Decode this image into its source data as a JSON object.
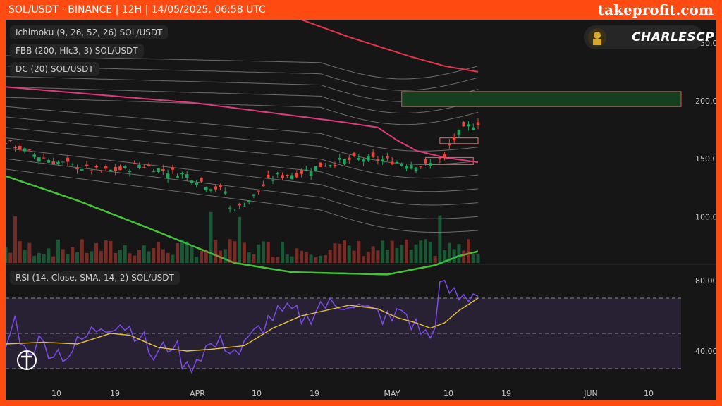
{
  "header": {
    "title": "SOL/USDT · BINANCE | 12H | 14/05/2025, 06:58 UTC",
    "brand": "takeprofit.com"
  },
  "legends": {
    "ichimoku": {
      "name": "Ichimoku",
      "params": "(9, 26, 52, 26)",
      "symbol": "SOL/USDT"
    },
    "fbb": {
      "name": "FBB",
      "params": "(200, Hlc3, 3)",
      "symbol": "SOL/USDT"
    },
    "dc": {
      "name": "DC",
      "params": "(20)",
      "symbol": "SOL/USDT"
    },
    "rsi": {
      "name": "RSI",
      "params": "(14, Close, SMA, 14, 2)",
      "symbol": "SOL/USDT"
    }
  },
  "watermark": {
    "author": "CHARLESCP"
  },
  "colors": {
    "up": "#22a55a",
    "down": "#e8473b",
    "fbb_upper": "#e8334a",
    "fbb_mid": "#e0397c",
    "fbb_lower": "#46c23a",
    "rsi": "#7b4ce8",
    "rsi_ma": "#e8c23a",
    "zone_green": "#14401f",
    "zone_border": "#e05555"
  },
  "chart_data": {
    "type": "candlestick",
    "ylim": [
      60,
      270
    ],
    "y_ticks": [
      "250.00",
      "200.00",
      "150.00",
      "100.00"
    ],
    "x_ticks": [
      "10",
      "19",
      "APR",
      "10",
      "19",
      "MAY",
      "10",
      "19",
      "JUN",
      "10"
    ],
    "price_points": [
      [
        0,
        165
      ],
      [
        5,
        155
      ],
      [
        10,
        148
      ],
      [
        15,
        143
      ],
      [
        20,
        139
      ],
      [
        25,
        141
      ],
      [
        28,
        145
      ],
      [
        33,
        140
      ],
      [
        38,
        136
      ],
      [
        43,
        126
      ],
      [
        46,
        122
      ],
      [
        47,
        107
      ],
      [
        49,
        108
      ],
      [
        52,
        118
      ],
      [
        55,
        131
      ],
      [
        57,
        135
      ],
      [
        61,
        137
      ],
      [
        66,
        144
      ],
      [
        70,
        148
      ],
      [
        75,
        150
      ],
      [
        79,
        149
      ],
      [
        84,
        146
      ],
      [
        88,
        144
      ],
      [
        92,
        150
      ],
      [
        93,
        161
      ],
      [
        95,
        172
      ],
      [
        97,
        178
      ],
      [
        99,
        181
      ]
    ],
    "fbb": {
      "upper": [
        [
          62,
          270
        ],
        [
          72,
          255
        ],
        [
          85,
          238
        ],
        [
          92,
          230
        ],
        [
          99,
          225
        ]
      ],
      "basis": [
        [
          0,
          212
        ],
        [
          20,
          205
        ],
        [
          40,
          198
        ],
        [
          55,
          190
        ],
        [
          70,
          182
        ],
        [
          78,
          177
        ],
        [
          82,
          166
        ],
        [
          86,
          157
        ],
        [
          92,
          151
        ],
        [
          99,
          147
        ]
      ],
      "lower": [
        [
          0,
          135
        ],
        [
          15,
          114
        ],
        [
          30,
          90
        ],
        [
          42,
          70
        ],
        [
          48,
          60
        ],
        [
          60,
          52
        ],
        [
          80,
          50
        ],
        [
          90,
          58
        ],
        [
          95,
          66
        ],
        [
          99,
          70
        ]
      ],
      "upper_bands": [
        [
          0,
          239,
          230
        ],
        [
          0,
          230,
          220
        ],
        [
          0,
          221,
          210
        ],
        [
          0,
          212,
          200
        ],
        [
          0,
          203,
          190
        ]
      ],
      "lower_bands": [
        [
          0,
          195,
          160
        ],
        [
          0,
          186,
          148
        ],
        [
          0,
          177,
          136
        ],
        [
          0,
          168,
          124
        ],
        [
          0,
          159,
          112
        ],
        [
          0,
          150,
          100
        ],
        [
          0,
          141,
          88
        ]
      ]
    },
    "zones": [
      {
        "type": "supply",
        "low": 195,
        "high": 208
      },
      {
        "type": "box",
        "low": 163,
        "high": 168
      },
      {
        "type": "box",
        "low": 145,
        "high": 151
      }
    ],
    "rsi": {
      "ylim": [
        24,
        88
      ],
      "y_ticks": [
        "80.00",
        "40.00"
      ],
      "levels": [
        70,
        50,
        30
      ],
      "points": [
        [
          0,
          42
        ],
        [
          2,
          58
        ],
        [
          4,
          40
        ],
        [
          7,
          45
        ],
        [
          10,
          40
        ],
        [
          13,
          38
        ],
        [
          16,
          46
        ],
        [
          20,
          55
        ],
        [
          24,
          56
        ],
        [
          28,
          50
        ],
        [
          31,
          36
        ],
        [
          35,
          45
        ],
        [
          38,
          30
        ],
        [
          42,
          42
        ],
        [
          46,
          44
        ],
        [
          49,
          39
        ],
        [
          53,
          52
        ],
        [
          56,
          60
        ],
        [
          60,
          62
        ],
        [
          63,
          58
        ],
        [
          66,
          67
        ],
        [
          69,
          65
        ],
        [
          72,
          69
        ],
        [
          75,
          63
        ],
        [
          78,
          61
        ],
        [
          81,
          57
        ],
        [
          83,
          64
        ],
        [
          85,
          56
        ],
        [
          87,
          52
        ],
        [
          89,
          47
        ],
        [
          90,
          58
        ],
        [
          91,
          76
        ],
        [
          93,
          74
        ],
        [
          95,
          70
        ],
        [
          97,
          71
        ],
        [
          99,
          75
        ]
      ],
      "ma_points": [
        [
          0,
          44
        ],
        [
          8,
          45
        ],
        [
          15,
          44
        ],
        [
          22,
          50
        ],
        [
          26,
          49
        ],
        [
          32,
          42
        ],
        [
          38,
          40
        ],
        [
          43,
          41
        ],
        [
          50,
          43
        ],
        [
          56,
          53
        ],
        [
          62,
          60
        ],
        [
          67,
          63
        ],
        [
          72,
          66
        ],
        [
          78,
          64
        ],
        [
          82,
          59
        ],
        [
          86,
          56
        ],
        [
          89,
          53
        ],
        [
          92,
          56
        ],
        [
          95,
          63
        ],
        [
          99,
          70
        ]
      ]
    }
  }
}
